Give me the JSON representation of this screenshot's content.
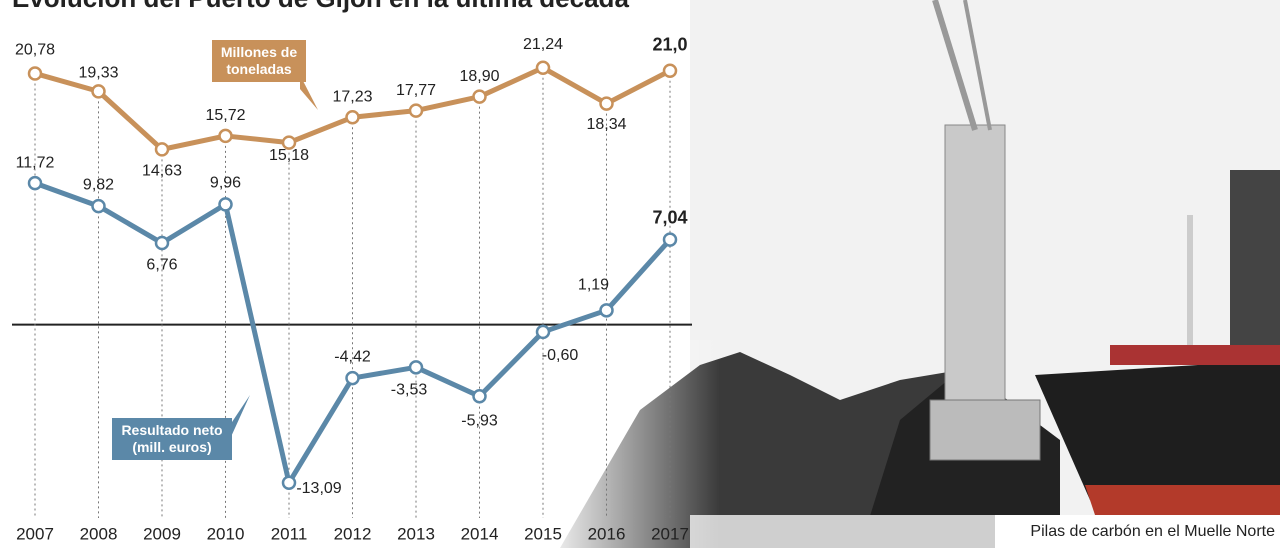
{
  "chart_data": {
    "type": "line",
    "title": "Evolución del Puerto de Gijón en la última década",
    "categories": [
      "2007",
      "2008",
      "2009",
      "2010",
      "2011",
      "2012",
      "2013",
      "2014",
      "2015",
      "2016",
      "2017"
    ],
    "series": [
      {
        "name": "Millones de toneladas",
        "color": "#c8915a",
        "axis": "y2",
        "values": [
          20.78,
          19.33,
          14.63,
          15.72,
          15.18,
          17.23,
          17.77,
          18.9,
          21.24,
          18.34,
          21.0
        ],
        "value_labels": [
          "20,78",
          "19,33",
          "14,63",
          "15,72",
          "15,18",
          "17,23",
          "17,77",
          "18,90",
          "21,24",
          "18,34",
          "21,0"
        ]
      },
      {
        "name": "Resultado neto (mill. euros)",
        "color": "#5b88a8",
        "values": [
          11.72,
          9.82,
          6.76,
          9.96,
          -13.09,
          -4.42,
          -3.53,
          -5.93,
          -0.6,
          1.19,
          7.04
        ],
        "value_labels": [
          "11,72",
          "9,82",
          "6,76",
          "9,96",
          "-13,09",
          "-4,42",
          "-3,53",
          "-5,93",
          "-0,60",
          "1,19",
          "7,04"
        ]
      }
    ],
    "ylim": [
      -17,
      24.4
    ],
    "y2lim": [
      -16.2,
      24.3
    ],
    "caption": "Pilas de carbón en el Muelle Norte"
  }
}
